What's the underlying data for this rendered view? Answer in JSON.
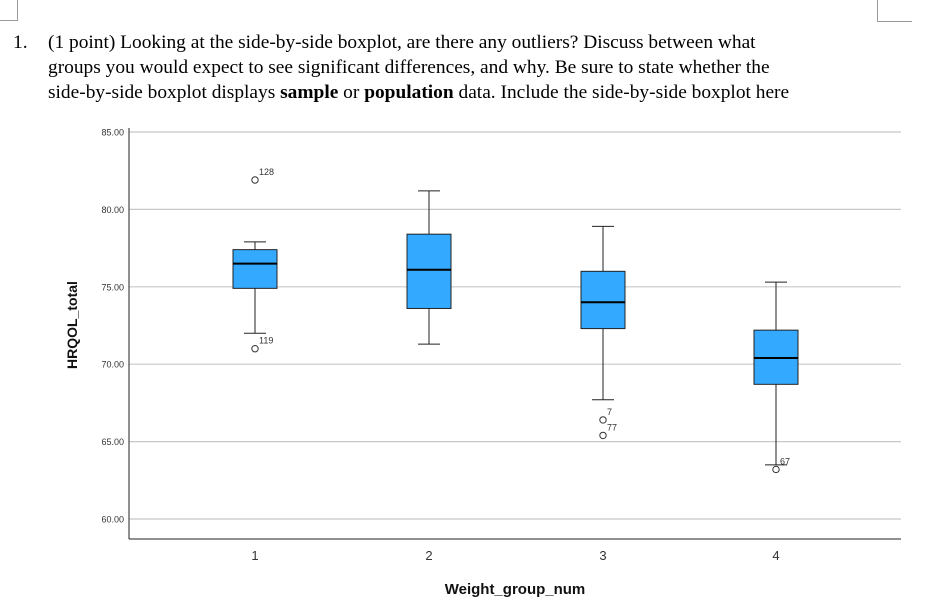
{
  "question": {
    "number": "1.",
    "line1": "(1 point) Looking at the side-by-side boxplot, are there any outliers? Discuss between what",
    "line2": "groups you would expect to see significant differences, and why. Be sure to state whether the",
    "line3_part1": "side-by-side boxplot displays ",
    "line3_bold1": "sample",
    "line3_part2": " or ",
    "line3_bold2": "population",
    "line3_part3": " data. Include the side-by-side boxplot here"
  },
  "chart_data": {
    "type": "boxplot",
    "xlabel": "Weight_group_num",
    "ylabel": "HRQOL_total",
    "categories": [
      "1",
      "2",
      "3",
      "4"
    ],
    "ylim": [
      58.8,
      85.0
    ],
    "yticks": [
      "60.00",
      "65.00",
      "70.00",
      "75.00",
      "80.00",
      "85.00"
    ],
    "grid": true,
    "box_color": "#33aaff",
    "boxes": [
      {
        "category": "1",
        "whisker_low": 72.0,
        "q1": 74.9,
        "median": 76.5,
        "q3": 77.4,
        "whisker_high": 77.9,
        "outliers": [
          {
            "value": 81.9,
            "label": "128"
          },
          {
            "value": 71.0,
            "label": "119"
          }
        ]
      },
      {
        "category": "2",
        "whisker_low": 71.3,
        "q1": 73.6,
        "median": 76.1,
        "q3": 78.4,
        "whisker_high": 81.2,
        "outliers": []
      },
      {
        "category": "3",
        "whisker_low": 67.7,
        "q1": 72.3,
        "median": 74.0,
        "q3": 76.0,
        "whisker_high": 78.9,
        "outliers": [
          {
            "value": 66.4,
            "label": "7"
          },
          {
            "value": 65.4,
            "label": "77"
          }
        ]
      },
      {
        "category": "4",
        "whisker_low": 63.5,
        "q1": 68.7,
        "median": 70.4,
        "q3": 72.2,
        "whisker_high": 75.3,
        "outliers": [
          {
            "value": 63.2,
            "label": "67"
          }
        ]
      }
    ]
  }
}
